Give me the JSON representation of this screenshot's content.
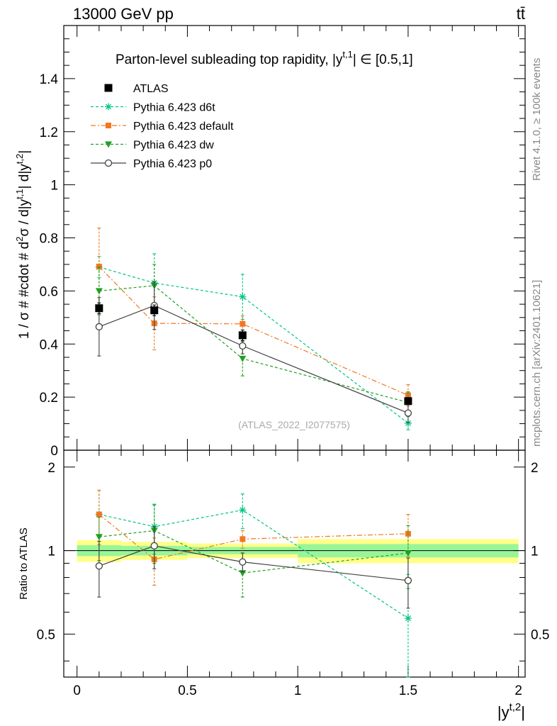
{
  "header": {
    "energy_label": "13000 GeV pp",
    "process_label": "tt̄",
    "rivet_label": "Rivet 4.1.0, ≥ 100k events",
    "mcplots_label": "mcplots.cern.ch [arXiv:2401.10621]"
  },
  "chart_data": {
    "type": "scatter",
    "title": "Parton-level subleading top rapidity, |y^{t,1}| ∈ [0.5,1]",
    "title_main": "Parton-level subleading top rapidity, |y",
    "title_sup": "t,1",
    "title_tail": "| ∈ [0.5,1]",
    "analysis_label": "(ATLAS_2022_I2077575)",
    "ylabel": "1 / σ # #cdot # d²σ / d|y^{t,1}| d|y^{t,2}|",
    "ylabel_parts": {
      "a": "1 / σ # #cdot # d",
      "b": "2",
      "c": "σ / d|y",
      "d": "t,1",
      "e": "| d|y",
      "f": "t,2",
      "g": "|"
    },
    "ratio_ylabel": "Ratio to ATLAS",
    "xlabel_main": "|y",
    "xlabel_sup": "t,2",
    "xlabel_tail": "|",
    "xlim": [
      -0.06,
      2.03
    ],
    "ylim": [
      0,
      1.6
    ],
    "ratio_ylim": [
      0.35,
      2.3
    ],
    "x_ticks": [
      0,
      0.5,
      1,
      1.5,
      2
    ],
    "x_tick_labels": [
      "0",
      "0.5",
      "1",
      "1.5",
      "2"
    ],
    "y_ticks": [
      0,
      0.2,
      0.4,
      0.6,
      0.8,
      1,
      1.2,
      1.4
    ],
    "y_tick_labels": [
      "0",
      "0.2",
      "0.4",
      "0.6",
      "0.8",
      "1",
      "1.2",
      "1.4"
    ],
    "ratio_ticks": [
      0.5,
      1,
      2
    ],
    "ratio_tick_labels": [
      "0.5",
      "1",
      "2"
    ],
    "bins": [
      [
        0,
        0.2
      ],
      [
        0.2,
        0.5
      ],
      [
        0.5,
        1.0
      ],
      [
        1.0,
        2.0
      ]
    ],
    "x": [
      0.1,
      0.35,
      0.75,
      1.5
    ],
    "data": {
      "name": "ATLAS",
      "values": [
        0.535,
        0.527,
        0.433,
        0.185
      ],
      "errors": [
        0.02,
        0.02,
        0.02,
        0.01
      ],
      "band_inner": [
        [
          0.955,
          1.045
        ],
        [
          0.96,
          1.04
        ],
        [
          0.97,
          1.03
        ],
        [
          0.945,
          1.055
        ]
      ],
      "band_outer": [
        [
          0.91,
          1.09
        ],
        [
          0.925,
          1.075
        ],
        [
          0.94,
          1.06
        ],
        [
          0.9,
          1.1
        ]
      ]
    },
    "series": [
      {
        "name": "Pythia 6.423 d6t",
        "color": "#00c584",
        "dash": "4,3",
        "marker": "star",
        "values": [
          0.69,
          0.63,
          0.578,
          0.102
        ],
        "errors": [
          0.04,
          0.11,
          0.085,
          0.025
        ],
        "ratio": [
          1.35,
          1.22,
          1.4,
          0.57
        ],
        "ratio_errors": [
          0.3,
          0.25,
          0.2,
          0.25
        ]
      },
      {
        "name": "Pythia 6.423 default",
        "color": "#f07820",
        "dash": "7,3,2,3",
        "marker": "square",
        "values": [
          0.692,
          0.478,
          0.476,
          0.207
        ],
        "errors": [
          0.145,
          0.1,
          0.03,
          0.04
        ],
        "ratio": [
          1.35,
          0.93,
          1.1,
          1.15
        ],
        "ratio_errors": [
          0.3,
          0.18,
          0.08,
          0.2
        ]
      },
      {
        "name": "Pythia 6.423 dw",
        "color": "#20a020",
        "dash": "4,3",
        "marker": "triangle",
        "values": [
          0.6,
          0.62,
          0.345,
          0.18
        ],
        "errors": [
          0.09,
          0.08,
          0.065,
          0.04
        ],
        "ratio": [
          1.12,
          1.18,
          0.83,
          0.98
        ],
        "ratio_errors": [
          0.2,
          0.28,
          0.15,
          0.25
        ]
      },
      {
        "name": "Pythia 6.423 p0",
        "color": "#404040",
        "dash": "",
        "marker": "circle",
        "values": [
          0.465,
          0.545,
          0.393,
          0.14
        ],
        "errors": [
          0.11,
          0.09,
          0.03,
          0.035
        ],
        "ratio": [
          0.88,
          1.04,
          0.91,
          0.78
        ],
        "ratio_errors": [
          0.2,
          0.18,
          0.07,
          0.16
        ]
      }
    ]
  }
}
